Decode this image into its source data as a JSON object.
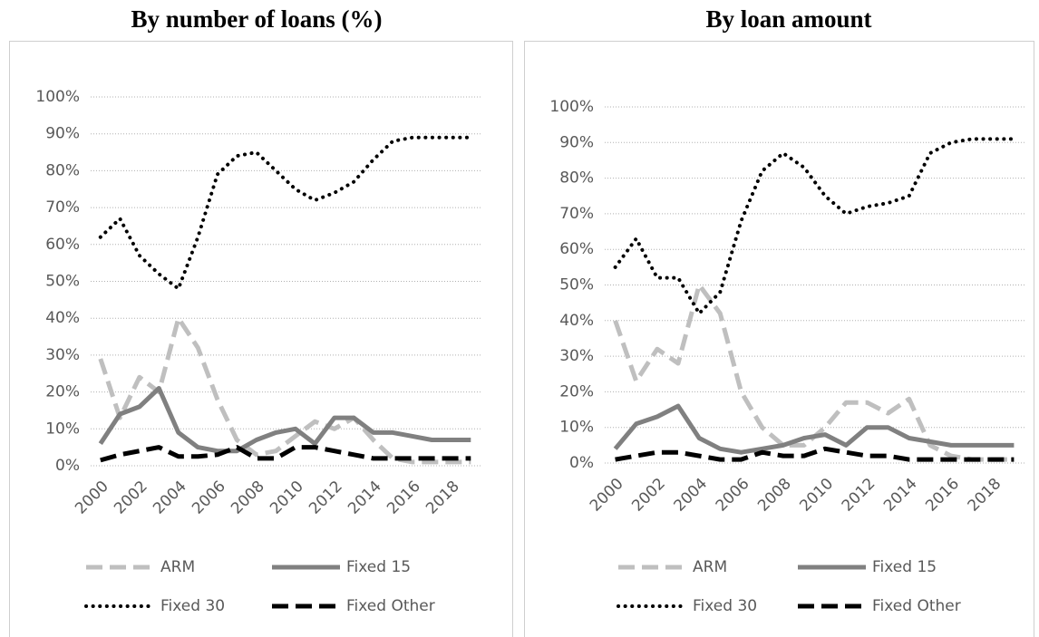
{
  "chart_data": [
    {
      "type": "line",
      "title": "By number of loans (%)",
      "categories": [
        "2000",
        null,
        "2002",
        null,
        "2004",
        null,
        "2006",
        null,
        "2008",
        null,
        "2010",
        null,
        "2012",
        null,
        "2014",
        null,
        "2016",
        null,
        "2018",
        null
      ],
      "ylim": [
        0,
        100
      ],
      "yticks": [
        {
          "value": 0,
          "label": "0%"
        },
        {
          "value": 10,
          "label": "10%"
        },
        {
          "value": 20,
          "label": "20%"
        },
        {
          "value": 30,
          "label": "30%"
        },
        {
          "value": 40,
          "label": "40%"
        },
        {
          "value": 50,
          "label": "50%"
        },
        {
          "value": 60,
          "label": "60%"
        },
        {
          "value": 70,
          "label": "70%"
        },
        {
          "value": 80,
          "label": "80%"
        },
        {
          "value": 90,
          "label": "90%"
        },
        {
          "value": 100,
          "label": "100%"
        }
      ],
      "grid": true,
      "series": [
        {
          "name": "ARM",
          "color": "#bfbfbf",
          "style": "dashed",
          "values": [
            29,
            13,
            24,
            20,
            40,
            32,
            18,
            7,
            3,
            4,
            8,
            12,
            10,
            13,
            7,
            2,
            1,
            1,
            1,
            1
          ]
        },
        {
          "name": "Fixed 15",
          "color": "#808080",
          "style": "solid",
          "values": [
            6,
            14,
            16,
            21,
            9,
            5,
            4,
            4,
            7,
            9,
            10,
            6,
            13,
            13,
            9,
            9,
            8,
            7,
            7,
            7
          ]
        },
        {
          "name": "Fixed 30",
          "color": "#000000",
          "style": "dotted",
          "values": [
            62,
            67,
            57,
            52,
            48,
            62,
            79,
            84,
            85,
            80,
            75,
            72,
            74,
            77,
            83,
            88,
            89,
            89,
            89,
            89
          ]
        },
        {
          "name": "Fixed Other",
          "color": "#000000",
          "style": "dashed",
          "values": [
            1.5,
            3,
            4,
            5,
            2.5,
            2.5,
            3,
            5,
            2,
            2,
            5,
            5,
            4,
            3,
            2,
            2,
            2,
            2,
            2,
            2
          ]
        }
      ]
    },
    {
      "type": "line",
      "title": "By loan amount",
      "categories": [
        "2000",
        null,
        "2002",
        null,
        "2004",
        null,
        "2006",
        null,
        "2008",
        null,
        "2010",
        null,
        "2012",
        null,
        "2014",
        null,
        "2016",
        null,
        "2018",
        null
      ],
      "ylim": [
        0,
        100
      ],
      "yticks": [
        {
          "value": 0,
          "label": "0%"
        },
        {
          "value": 10,
          "label": "10%"
        },
        {
          "value": 20,
          "label": "20%"
        },
        {
          "value": 30,
          "label": "30%"
        },
        {
          "value": 40,
          "label": "40%"
        },
        {
          "value": 50,
          "label": "50%"
        },
        {
          "value": 60,
          "label": "60%"
        },
        {
          "value": 70,
          "label": "70%"
        },
        {
          "value": 80,
          "label": "80%"
        },
        {
          "value": 90,
          "label": "90%"
        },
        {
          "value": 100,
          "label": "100%"
        }
      ],
      "grid": true,
      "series": [
        {
          "name": "ARM",
          "color": "#bfbfbf",
          "style": "dashed",
          "values": [
            40,
            23,
            32,
            28,
            50,
            42,
            20,
            10,
            5,
            5,
            10,
            17,
            17,
            14,
            18,
            5,
            2,
            1,
            1,
            1
          ]
        },
        {
          "name": "Fixed 15",
          "color": "#808080",
          "style": "solid",
          "values": [
            4,
            11,
            13,
            16,
            7,
            4,
            3,
            4,
            5,
            7,
            8,
            5,
            10,
            10,
            7,
            6,
            5,
            5,
            5,
            5
          ]
        },
        {
          "name": "Fixed 30",
          "color": "#000000",
          "style": "dotted",
          "values": [
            55,
            63,
            52,
            52,
            42,
            48,
            68,
            82,
            87,
            83,
            75,
            70,
            72,
            73,
            75,
            87,
            90,
            91,
            91,
            91
          ]
        },
        {
          "name": "Fixed Other",
          "color": "#000000",
          "style": "dashed",
          "values": [
            1,
            2,
            3,
            3,
            2,
            1,
            1,
            3,
            2,
            2,
            4,
            3,
            2,
            2,
            1,
            1,
            1,
            1,
            1,
            1
          ]
        }
      ]
    }
  ]
}
